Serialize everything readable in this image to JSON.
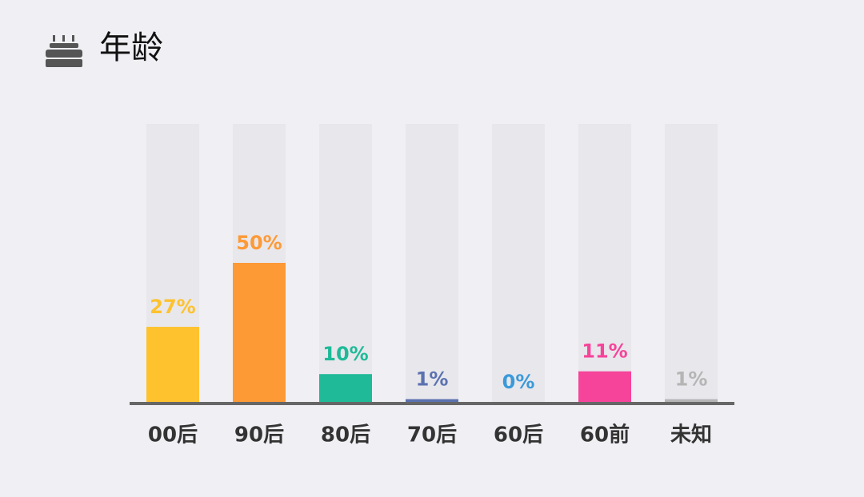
{
  "chart_data": {
    "type": "bar",
    "title": "年龄",
    "categories": [
      "00后",
      "90后",
      "80后",
      "70后",
      "60后",
      "60前",
      "未知"
    ],
    "values": [
      27,
      50,
      10,
      1,
      0,
      11,
      1
    ],
    "value_labels": [
      "27%",
      "50%",
      "10%",
      "1%",
      "0%",
      "11%",
      "1%"
    ],
    "colors": [
      "#fdc22e",
      "#fd9a36",
      "#1fba98",
      "#5b72b0",
      "#3a9ad9",
      "#f5449a",
      "#b5b5b5"
    ],
    "ylim": [
      0,
      100
    ]
  }
}
